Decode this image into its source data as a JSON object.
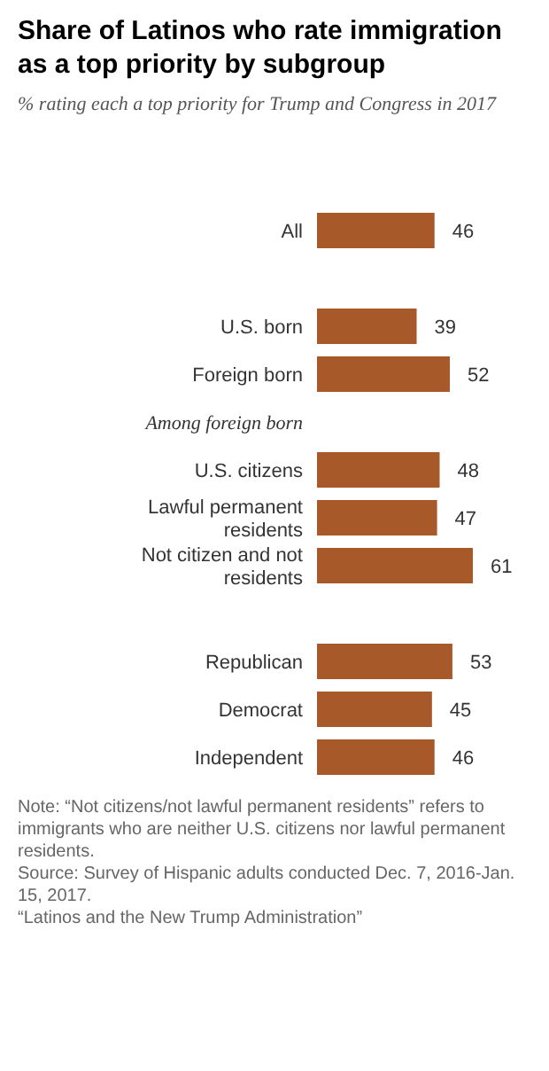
{
  "chart_data": {
    "type": "bar",
    "orientation": "horizontal",
    "title": "Share of Latinos who rate immigration as a top priority by subgroup",
    "subtitle": "% rating each a top priority for Trump and Congress in 2017",
    "categories": [
      "All",
      null,
      "U.S. born",
      "Foreign born",
      "Among foreign born",
      "U.S. citizens",
      "Lawful permanent residents",
      "Not citizen and not residents",
      null,
      "Republican",
      "Democrat",
      "Independent"
    ],
    "values": [
      46,
      null,
      39,
      52,
      null,
      48,
      47,
      61,
      null,
      53,
      45,
      46
    ],
    "color": "#a8592a",
    "data_labels": true,
    "relative": false,
    "annotations": [
      "Note: “Not citizens/not lawful permanent residents” refers to immigrants who are neither U.S. citizens nor lawful permanent residents.",
      "Source: Survey of Hispanic adults conducted Dec. 7, 2016-Jan. 15, 2017.",
      "“Latinos and the New Trump Administration”"
    ]
  }
}
